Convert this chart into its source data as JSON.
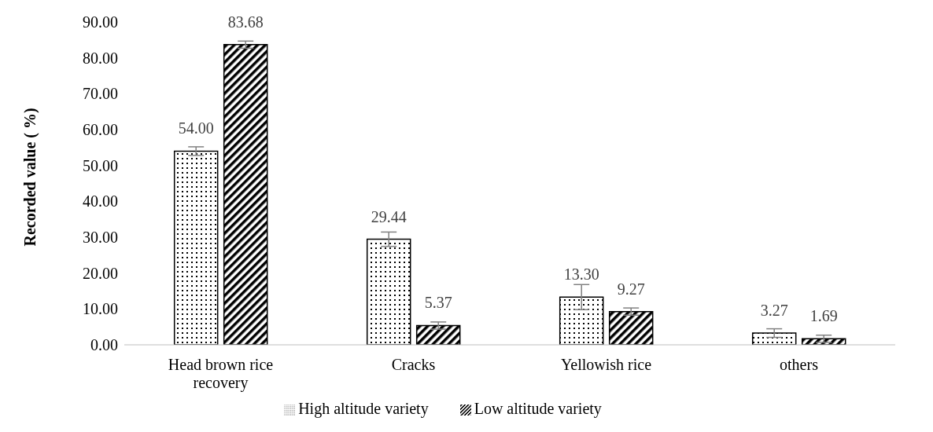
{
  "chart_data": {
    "type": "bar",
    "ylabel": "Recorded value ( %)",
    "categories": [
      "Head brown rice recovery",
      "Cracks",
      "Yellowish rice",
      "others"
    ],
    "series": [
      {
        "name": "High altitude variety",
        "color": "#000000",
        "values": [
          54.0,
          29.44,
          13.3,
          3.27
        ],
        "value_labels": [
          "54.00",
          "29.44",
          "13.30",
          "3.27"
        ],
        "errors": [
          1.2,
          2.0,
          3.5,
          1.2
        ]
      },
      {
        "name": "Low altitude variety",
        "color": "#000000",
        "values": [
          83.68,
          5.37,
          9.27,
          1.69
        ],
        "value_labels": [
          "83.68",
          "5.37",
          "9.27",
          "1.69"
        ],
        "errors": [
          1.0,
          1.0,
          1.0,
          1.0
        ]
      }
    ],
    "ylim": [
      0,
      90
    ],
    "yticks": [
      {
        "value": 0,
        "label": "0.00"
      },
      {
        "value": 10,
        "label": "10.00"
      },
      {
        "value": 20,
        "label": "20.00"
      },
      {
        "value": 30,
        "label": "30.00"
      },
      {
        "value": 40,
        "label": "40.00"
      },
      {
        "value": 50,
        "label": "50.00"
      },
      {
        "value": 60,
        "label": "60.00"
      },
      {
        "value": 70,
        "label": "70.00"
      },
      {
        "value": 80,
        "label": "80.00"
      },
      {
        "value": 90,
        "label": "90.00"
      }
    ],
    "grid": false,
    "legend": "bottom"
  }
}
